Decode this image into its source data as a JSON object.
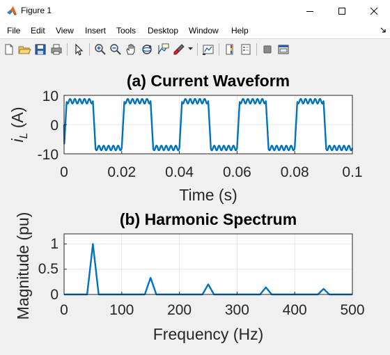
{
  "window": {
    "title": "Figure 1"
  },
  "menu": [
    "File",
    "Edit",
    "View",
    "Insert",
    "Tools",
    "Desktop",
    "Window",
    "Help"
  ],
  "toolbar_icons": [
    "new-figure-icon",
    "open-file-icon",
    "save-icon",
    "print-icon",
    "pointer-icon",
    "zoom-in-icon",
    "zoom-out-icon",
    "pan-icon",
    "rotate-3d-icon",
    "data-cursor-icon",
    "brush-icon",
    "brush-dropdown-icon",
    "link-plot-icon",
    "colorbar-icon",
    "legend-icon",
    "hide-plot-tools-icon",
    "show-plot-tools-icon"
  ],
  "colors": {
    "line": "#0072bd",
    "grid": "#e6e6e6",
    "axes": "#262626"
  },
  "chart_data": [
    {
      "type": "line",
      "title": "(a) Current Waveform",
      "xlabel": "Time (s)",
      "ylabel_main": "i",
      "ylabel_sub": "L",
      "ylabel_unit": " (A)",
      "xlim": [
        0,
        0.1
      ],
      "ylim": [
        -10,
        10
      ],
      "xticks": [
        "0",
        "0.02",
        "0.04",
        "0.06",
        "0.08",
        "0.1"
      ],
      "yticks": [
        "10",
        "0",
        "-10"
      ],
      "fundamental_hz": 50,
      "amplitude": 8.0,
      "ripple": 0.8,
      "grid": true
    },
    {
      "type": "line",
      "title": "(b) Harmonic Spectrum",
      "xlabel": "Frequency (Hz)",
      "ylabel": "Magnitude (pu)",
      "xlim": [
        0,
        500
      ],
      "ylim": [
        0,
        1.2
      ],
      "xticks": [
        "0",
        "100",
        "200",
        "300",
        "400",
        "500"
      ],
      "yticks": [
        "1",
        "0.5",
        "0"
      ],
      "x": [
        0,
        40,
        50,
        60,
        140,
        150,
        160,
        240,
        250,
        260,
        340,
        350,
        360,
        440,
        450,
        460,
        500
      ],
      "y": [
        0,
        0,
        1.0,
        0,
        0,
        0.33,
        0,
        0,
        0.2,
        0,
        0,
        0.14,
        0,
        0,
        0.11,
        0,
        0
      ],
      "grid": true
    }
  ]
}
